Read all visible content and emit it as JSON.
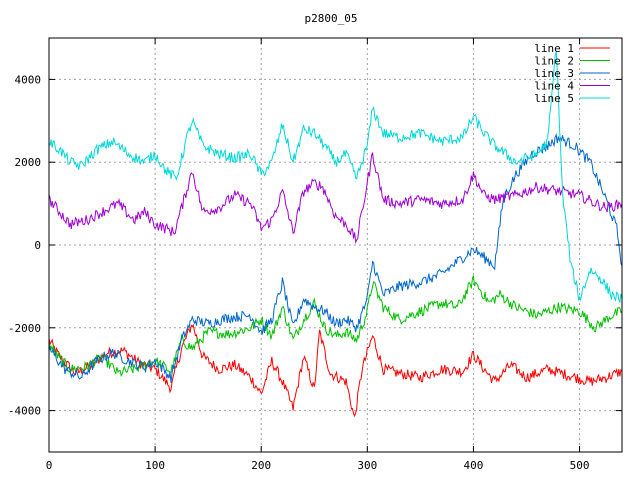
{
  "chart_data": {
    "type": "line",
    "title": "p2800_05",
    "xlabel": "",
    "ylabel": "",
    "xlim": [
      0,
      540
    ],
    "ylim": [
      -5000,
      5000
    ],
    "xticks": [
      0,
      100,
      200,
      300,
      400,
      500
    ],
    "yticks": [
      -4000,
      -2000,
      0,
      2000,
      4000
    ],
    "grid": true,
    "legend_position": "top-right",
    "series": [
      {
        "name": "line 1",
        "color": "#ff0000",
        "points": [
          [
            0,
            -2300
          ],
          [
            10,
            -2700
          ],
          [
            25,
            -3100
          ],
          [
            40,
            -2900
          ],
          [
            55,
            -2600
          ],
          [
            70,
            -2550
          ],
          [
            85,
            -2850
          ],
          [
            100,
            -3000
          ],
          [
            115,
            -3450
          ],
          [
            125,
            -2500
          ],
          [
            135,
            -1900
          ],
          [
            145,
            -2700
          ],
          [
            160,
            -3000
          ],
          [
            175,
            -2900
          ],
          [
            190,
            -3200
          ],
          [
            200,
            -3600
          ],
          [
            210,
            -2800
          ],
          [
            220,
            -3300
          ],
          [
            230,
            -3950
          ],
          [
            240,
            -2700
          ],
          [
            250,
            -3500
          ],
          [
            255,
            -2100
          ],
          [
            265,
            -3100
          ],
          [
            280,
            -3300
          ],
          [
            288,
            -4200
          ],
          [
            295,
            -3000
          ],
          [
            305,
            -2200
          ],
          [
            315,
            -3000
          ],
          [
            330,
            -3100
          ],
          [
            350,
            -3200
          ],
          [
            370,
            -3000
          ],
          [
            390,
            -3050
          ],
          [
            400,
            -2650
          ],
          [
            410,
            -3000
          ],
          [
            420,
            -3300
          ],
          [
            435,
            -2900
          ],
          [
            450,
            -3200
          ],
          [
            470,
            -3000
          ],
          [
            490,
            -3150
          ],
          [
            510,
            -3300
          ],
          [
            525,
            -3200
          ],
          [
            540,
            -3050
          ]
        ]
      },
      {
        "name": "line 2",
        "color": "#00c000",
        "points": [
          [
            0,
            -2400
          ],
          [
            10,
            -2750
          ],
          [
            20,
            -3000
          ],
          [
            35,
            -2950
          ],
          [
            50,
            -2700
          ],
          [
            65,
            -3100
          ],
          [
            80,
            -3000
          ],
          [
            100,
            -2800
          ],
          [
            115,
            -3050
          ],
          [
            125,
            -2300
          ],
          [
            135,
            -2500
          ],
          [
            150,
            -2100
          ],
          [
            170,
            -2150
          ],
          [
            190,
            -2000
          ],
          [
            200,
            -1800
          ],
          [
            210,
            -2200
          ],
          [
            220,
            -1500
          ],
          [
            230,
            -2300
          ],
          [
            240,
            -1800
          ],
          [
            250,
            -1400
          ],
          [
            260,
            -2000
          ],
          [
            270,
            -2200
          ],
          [
            280,
            -2100
          ],
          [
            290,
            -2300
          ],
          [
            300,
            -1600
          ],
          [
            305,
            -900
          ],
          [
            315,
            -1500
          ],
          [
            330,
            -1800
          ],
          [
            350,
            -1600
          ],
          [
            370,
            -1400
          ],
          [
            385,
            -1500
          ],
          [
            400,
            -850
          ],
          [
            415,
            -1400
          ],
          [
            425,
            -1200
          ],
          [
            440,
            -1500
          ],
          [
            460,
            -1700
          ],
          [
            480,
            -1500
          ],
          [
            500,
            -1600
          ],
          [
            515,
            -2000
          ],
          [
            530,
            -1700
          ],
          [
            540,
            -1600
          ]
        ]
      },
      {
        "name": "line 3",
        "color": "#0066cc",
        "points": [
          [
            0,
            -2500
          ],
          [
            15,
            -3000
          ],
          [
            30,
            -3200
          ],
          [
            45,
            -2800
          ],
          [
            60,
            -2600
          ],
          [
            75,
            -2800
          ],
          [
            90,
            -2950
          ],
          [
            100,
            -2800
          ],
          [
            115,
            -3200
          ],
          [
            125,
            -2300
          ],
          [
            135,
            -1800
          ],
          [
            150,
            -1900
          ],
          [
            170,
            -1750
          ],
          [
            190,
            -1700
          ],
          [
            200,
            -2100
          ],
          [
            210,
            -1800
          ],
          [
            220,
            -900
          ],
          [
            230,
            -2000
          ],
          [
            240,
            -1300
          ],
          [
            250,
            -1500
          ],
          [
            260,
            -1600
          ],
          [
            270,
            -1900
          ],
          [
            280,
            -1800
          ],
          [
            290,
            -2000
          ],
          [
            300,
            -1300
          ],
          [
            305,
            -400
          ],
          [
            315,
            -1200
          ],
          [
            330,
            -1000
          ],
          [
            350,
            -900
          ],
          [
            370,
            -700
          ],
          [
            390,
            -300
          ],
          [
            400,
            -100
          ],
          [
            410,
            -300
          ],
          [
            420,
            -500
          ],
          [
            428,
            1100
          ],
          [
            440,
            1700
          ],
          [
            455,
            2200
          ],
          [
            470,
            2400
          ],
          [
            480,
            2600
          ],
          [
            495,
            2400
          ],
          [
            510,
            2000
          ],
          [
            525,
            1100
          ],
          [
            535,
            400
          ],
          [
            540,
            -500
          ]
        ]
      },
      {
        "name": "line 4",
        "color": "#a000d0",
        "points": [
          [
            0,
            1100
          ],
          [
            10,
            800
          ],
          [
            20,
            500
          ],
          [
            35,
            600
          ],
          [
            50,
            800
          ],
          [
            65,
            1000
          ],
          [
            80,
            600
          ],
          [
            90,
            800
          ],
          [
            100,
            500
          ],
          [
            110,
            400
          ],
          [
            118,
            300
          ],
          [
            125,
            900
          ],
          [
            135,
            1800
          ],
          [
            145,
            800
          ],
          [
            160,
            900
          ],
          [
            175,
            1200
          ],
          [
            190,
            1000
          ],
          [
            200,
            400
          ],
          [
            210,
            600
          ],
          [
            220,
            1300
          ],
          [
            230,
            300
          ],
          [
            240,
            1300
          ],
          [
            250,
            1500
          ],
          [
            258,
            1400
          ],
          [
            270,
            700
          ],
          [
            280,
            500
          ],
          [
            290,
            100
          ],
          [
            300,
            1500
          ],
          [
            305,
            2200
          ],
          [
            315,
            1100
          ],
          [
            330,
            1000
          ],
          [
            350,
            1100
          ],
          [
            370,
            1000
          ],
          [
            390,
            1100
          ],
          [
            400,
            1700
          ],
          [
            410,
            1200
          ],
          [
            420,
            1100
          ],
          [
            440,
            1200
          ],
          [
            460,
            1400
          ],
          [
            480,
            1300
          ],
          [
            500,
            1200
          ],
          [
            515,
            1000
          ],
          [
            525,
            900
          ],
          [
            540,
            1000
          ]
        ]
      },
      {
        "name": "line 5",
        "color": "#00d8d8",
        "points": [
          [
            0,
            2500
          ],
          [
            10,
            2300
          ],
          [
            20,
            2000
          ],
          [
            30,
            1900
          ],
          [
            45,
            2300
          ],
          [
            60,
            2500
          ],
          [
            75,
            2200
          ],
          [
            90,
            2000
          ],
          [
            100,
            2200
          ],
          [
            110,
            1800
          ],
          [
            120,
            1600
          ],
          [
            130,
            2600
          ],
          [
            135,
            3000
          ],
          [
            145,
            2400
          ],
          [
            160,
            2200
          ],
          [
            175,
            2100
          ],
          [
            190,
            2200
          ],
          [
            200,
            1700
          ],
          [
            210,
            2000
          ],
          [
            220,
            2900
          ],
          [
            230,
            2000
          ],
          [
            240,
            2800
          ],
          [
            250,
            2700
          ],
          [
            260,
            2400
          ],
          [
            270,
            2000
          ],
          [
            280,
            2200
          ],
          [
            290,
            1600
          ],
          [
            300,
            2400
          ],
          [
            305,
            3300
          ],
          [
            315,
            2700
          ],
          [
            330,
            2600
          ],
          [
            350,
            2700
          ],
          [
            370,
            2500
          ],
          [
            390,
            2600
          ],
          [
            400,
            3100
          ],
          [
            410,
            2700
          ],
          [
            420,
            2400
          ],
          [
            440,
            2000
          ],
          [
            460,
            2200
          ],
          [
            470,
            2500
          ],
          [
            478,
            4800
          ],
          [
            484,
            1200
          ],
          [
            492,
            -500
          ],
          [
            500,
            -1300
          ],
          [
            510,
            -600
          ],
          [
            520,
            -800
          ],
          [
            530,
            -1200
          ],
          [
            540,
            -1300
          ]
        ]
      }
    ]
  }
}
